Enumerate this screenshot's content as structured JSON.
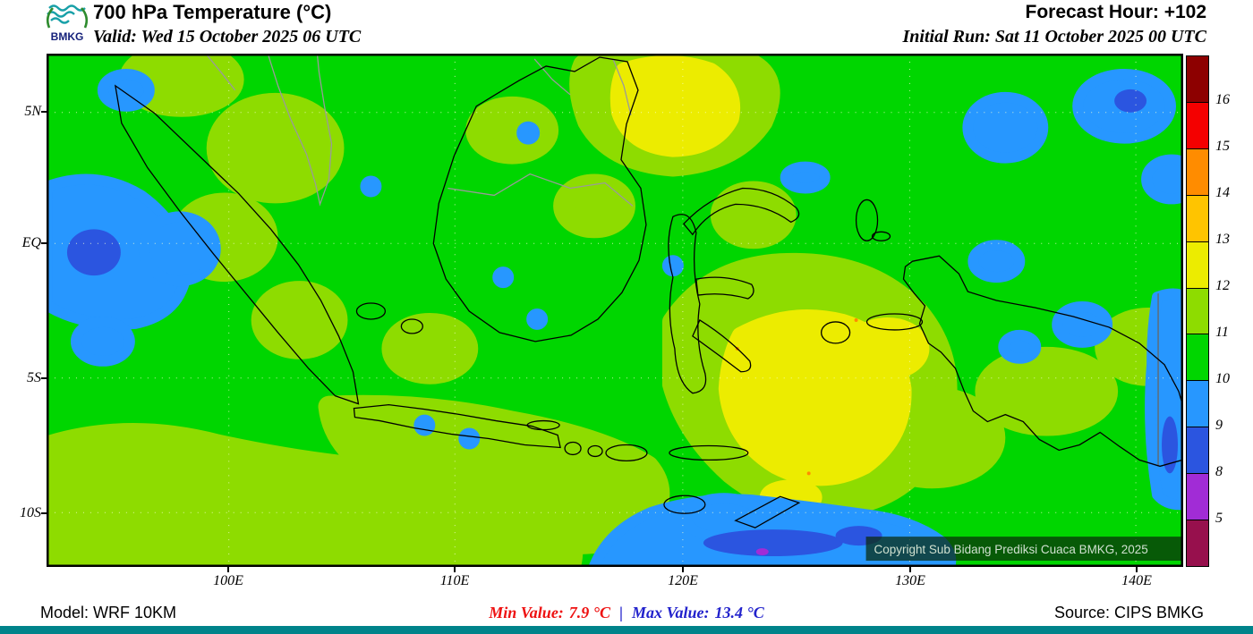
{
  "header": {
    "logo_text": "BMKG",
    "title": "700 hPa Temperature (°C)",
    "valid_line": "Valid: Wed 15 October 2025 06 UTC",
    "forecast_hour": "Forecast Hour: +102",
    "initial_run": "Initial Run: Sat 11 October 2025 00 UTC"
  },
  "map": {
    "lat_labels": [
      "5N",
      "EQ",
      "5S",
      "10S"
    ],
    "lon_labels": [
      "100E",
      "110E",
      "120E",
      "130E",
      "140E"
    ],
    "copyright": "Copyright Sub Bidang Prediksi Cuaca BMKG, 2025"
  },
  "colorbar": {
    "labels": [
      "16",
      "15",
      "14",
      "13",
      "12",
      "11",
      "10",
      "9",
      "8",
      "5"
    ],
    "segment_colors": [
      "#8d0000",
      "#f40000",
      "#ff8c00",
      "#ffc400",
      "#ecec00",
      "#8edc00",
      "#00d600",
      "#2797ff",
      "#2b55e0",
      "#a12cd6",
      "#97104d"
    ]
  },
  "field_colors": {
    "green": "#00d600",
    "yellow_green": "#8edc00",
    "yellow": "#ecec00",
    "blue": "#2797ff",
    "dark_blue": "#2b55e0",
    "purple": "#a12cd6",
    "fleck_orange": "#ff8c00"
  },
  "footer": {
    "model": "Model: WRF 10KM",
    "min_label": "Min Value:",
    "min_value": "7.9 °C",
    "separator": "|",
    "max_label": "Max Value:",
    "max_value": "13.4 °C",
    "source": "Source: CIPS BMKG"
  }
}
